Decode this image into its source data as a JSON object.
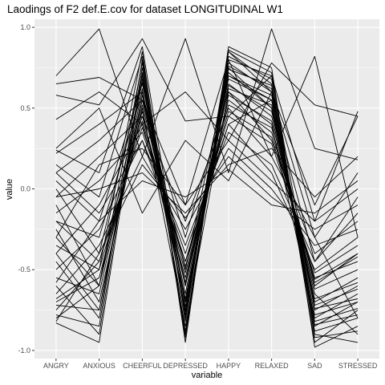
{
  "chart_data": {
    "type": "line",
    "title": "Laodings of F2 def.E.cov for dataset LONGITUDINAL W1",
    "xlabel": "variable",
    "ylabel": "value",
    "categories": [
      "ANGRY",
      "ANXIOUS",
      "CHEERFUL",
      "DEPRESSED",
      "HAPPY",
      "RELAXED",
      "SAD",
      "STRESSED"
    ],
    "ylim": [
      -1.05,
      1.05
    ],
    "yticks": [
      -1.0,
      -0.5,
      0.0,
      0.5,
      1.0
    ],
    "ytick_labels": [
      "-1.0",
      "-0.5",
      "0.0",
      "0.5",
      "1.0"
    ],
    "grid": true,
    "legend": "none",
    "line_color": "#000000",
    "panel_color": "#ebebeb",
    "grid_color": "#ffffff",
    "series": [
      {
        "values": [
          0.7,
          0.99,
          0.2,
          0.93,
          0.1,
          0.99,
          0.25,
          0.18
        ]
      },
      {
        "values": [
          0.65,
          0.69,
          0.55,
          -0.1,
          0.8,
          0.2,
          0.82,
          -0.3
        ]
      },
      {
        "values": [
          0.58,
          0.52,
          0.93,
          0.42,
          0.45,
          0.7,
          -0.2,
          0.48
        ]
      },
      {
        "values": [
          0.43,
          0.6,
          0.4,
          0.6,
          0.3,
          0.78,
          0.52,
          0.45
        ]
      },
      {
        "values": [
          0.24,
          0.1,
          0.88,
          -0.73,
          0.85,
          0.6,
          -0.3,
          -0.8
        ]
      },
      {
        "values": [
          0.22,
          0.4,
          0.6,
          -0.5,
          0.75,
          0.5,
          -0.6,
          -0.4
        ]
      },
      {
        "values": [
          0.15,
          -0.05,
          0.82,
          -0.8,
          0.8,
          0.7,
          -0.75,
          -0.6
        ]
      },
      {
        "values": [
          0.1,
          0.3,
          0.55,
          -0.3,
          0.6,
          0.3,
          -0.4,
          -0.2
        ]
      },
      {
        "values": [
          0.05,
          -0.2,
          0.65,
          -0.6,
          0.7,
          0.55,
          -0.85,
          -0.7
        ]
      },
      {
        "values": [
          0.0,
          -0.4,
          0.7,
          -0.7,
          0.65,
          0.45,
          -0.65,
          -0.9
        ]
      },
      {
        "values": [
          -0.05,
          0.2,
          0.45,
          -0.2,
          0.5,
          0.2,
          -0.3,
          0.1
        ]
      },
      {
        "values": [
          -0.1,
          -0.6,
          0.78,
          -0.9,
          0.85,
          0.65,
          -0.95,
          -0.75
        ]
      },
      {
        "values": [
          -0.15,
          0.05,
          0.35,
          -0.4,
          0.4,
          0.1,
          -0.5,
          -0.3
        ]
      },
      {
        "values": [
          -0.2,
          -0.3,
          0.6,
          -0.65,
          0.72,
          0.5,
          -0.7,
          -0.55
        ]
      },
      {
        "values": [
          -0.25,
          -0.7,
          0.5,
          -0.85,
          0.6,
          0.4,
          -0.8,
          -0.65
        ]
      },
      {
        "values": [
          -0.3,
          0.15,
          0.25,
          -0.1,
          0.3,
          0.05,
          -0.2,
          0.0
        ]
      },
      {
        "values": [
          -0.35,
          -0.5,
          0.85,
          -0.95,
          0.88,
          0.75,
          -0.98,
          -0.85
        ]
      },
      {
        "values": [
          -0.4,
          -0.1,
          0.4,
          -0.55,
          0.55,
          0.35,
          -0.55,
          -0.45
        ]
      },
      {
        "values": [
          -0.45,
          -0.8,
          0.68,
          -0.75,
          0.78,
          0.6,
          -0.9,
          -0.95
        ]
      },
      {
        "values": [
          -0.5,
          -0.25,
          0.3,
          -0.35,
          0.35,
          0.15,
          -0.45,
          -0.15
        ]
      },
      {
        "values": [
          -0.55,
          -0.65,
          0.55,
          -0.6,
          0.62,
          0.52,
          -0.72,
          -0.62
        ]
      },
      {
        "values": [
          -0.6,
          -0.9,
          0.75,
          -0.88,
          0.82,
          0.68,
          -0.88,
          -0.8
        ]
      },
      {
        "values": [
          -0.65,
          -0.35,
          0.2,
          -0.25,
          0.25,
          0.0,
          -0.35,
          -0.25
        ]
      },
      {
        "values": [
          -0.7,
          -0.55,
          0.48,
          -0.7,
          0.58,
          0.42,
          -0.62,
          -0.5
        ]
      },
      {
        "values": [
          -0.72,
          -0.75,
          0.62,
          -0.82,
          0.7,
          0.58,
          -0.78,
          -0.7
        ]
      },
      {
        "values": [
          -0.75,
          -0.45,
          0.38,
          -0.45,
          0.45,
          0.28,
          -0.52,
          -0.35
        ]
      },
      {
        "values": [
          -0.78,
          -0.85,
          0.8,
          -0.92,
          0.86,
          0.72,
          -0.92,
          -0.88
        ]
      },
      {
        "values": [
          -0.8,
          -0.6,
          0.52,
          -0.58,
          0.64,
          0.48,
          -0.68,
          -0.58
        ]
      },
      {
        "values": [
          -0.82,
          -0.4,
          0.15,
          -0.18,
          0.2,
          -0.05,
          -0.25,
          -0.1
        ]
      },
      {
        "values": [
          -0.83,
          -0.95,
          0.72,
          -0.78,
          0.76,
          0.62,
          -0.84,
          -0.78
        ]
      },
      {
        "values": [
          0.25,
          0.5,
          -0.15,
          0.3,
          0.05,
          0.6,
          -0.1,
          0.45
        ]
      },
      {
        "values": [
          -0.05,
          0.0,
          0.1,
          -0.15,
          0.15,
          0.25,
          -0.05,
          0.2
        ]
      },
      {
        "values": [
          0.1,
          -0.15,
          0.3,
          -0.45,
          0.4,
          0.55,
          -0.45,
          -0.05
        ]
      },
      {
        "values": [
          -0.2,
          -0.45,
          0.45,
          -0.52,
          0.52,
          0.38,
          -0.58,
          -0.42
        ]
      },
      {
        "values": [
          -0.58,
          -0.2,
          0.05,
          -0.05,
          0.12,
          -0.1,
          -0.15,
          0.05
        ]
      },
      {
        "values": [
          -0.4,
          -0.75,
          0.58,
          -0.68,
          0.68,
          0.55,
          -0.74,
          -0.68
        ]
      },
      {
        "values": [
          -0.68,
          -0.5,
          0.42,
          -0.48,
          0.48,
          0.32,
          -0.56,
          -0.4
        ]
      },
      {
        "values": [
          -0.3,
          -0.6,
          0.66,
          -0.76,
          0.74,
          0.64,
          -0.82,
          -0.74
        ]
      }
    ]
  }
}
